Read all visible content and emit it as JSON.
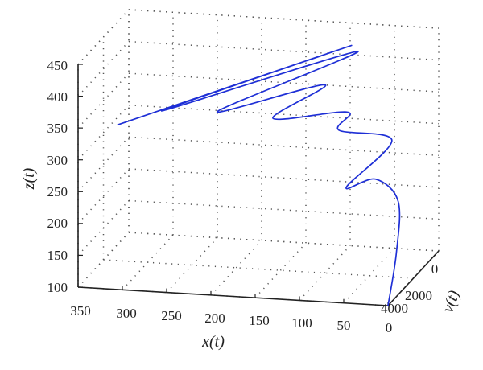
{
  "chart_data": {
    "type": "line",
    "projection": "3d",
    "x_axis": {
      "label": "x(t)",
      "ticks": [
        "350",
        "300",
        "250",
        "200",
        "150",
        "100",
        "50",
        "0"
      ],
      "range": [
        0,
        350
      ]
    },
    "y_axis": {
      "label": "ν(t)",
      "ticks": [
        "0",
        "2000",
        "4000"
      ],
      "range": [
        0,
        4000
      ]
    },
    "z_axis": {
      "label": "z(t)",
      "ticks": [
        "100",
        "150",
        "200",
        "250",
        "300",
        "350",
        "400",
        "450"
      ],
      "range": [
        100,
        450
      ]
    },
    "grid": true,
    "series": [
      {
        "color": "#1e2fd6",
        "trajectory": [
          {
            "x": 0,
            "v": 4000,
            "z": 100
          },
          {
            "x": 5,
            "v": 3000,
            "z": 160
          },
          {
            "x": 20,
            "v": 1800,
            "z": 215
          },
          {
            "x": 60,
            "v": 800,
            "z": 225
          },
          {
            "x": 80,
            "v": 1700,
            "z": 230
          },
          {
            "x": 40,
            "v": 900,
            "z": 290
          },
          {
            "x": 110,
            "v": 200,
            "z": 285
          },
          {
            "x": 90,
            "v": 900,
            "z": 330
          },
          {
            "x": 170,
            "v": 1200,
            "z": 320
          },
          {
            "x": 110,
            "v": 1300,
            "z": 380
          },
          {
            "x": 230,
            "v": 1400,
            "z": 330
          },
          {
            "x": 70,
            "v": 1500,
            "z": 440
          },
          {
            "x": 290,
            "v": 1600,
            "z": 330
          },
          {
            "x": 70,
            "v": 2000,
            "z": 460
          },
          {
            "x": 330,
            "v": 2300,
            "z": 320
          }
        ]
      }
    ]
  }
}
